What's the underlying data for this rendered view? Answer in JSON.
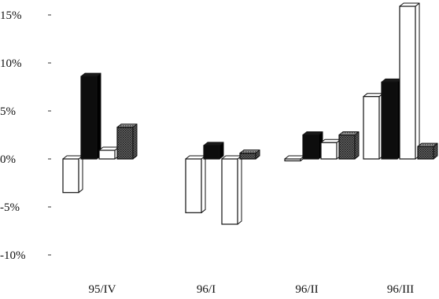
{
  "chart_data": {
    "type": "bar",
    "bar_style": "3d",
    "categories": [
      "95/IV",
      "96/I",
      "96/II",
      "96/III"
    ],
    "series": [
      {
        "pattern": "white",
        "values": [
          -3.5,
          -5.6,
          -0.2,
          6.5
        ]
      },
      {
        "pattern": "black",
        "values": [
          8.6,
          1.4,
          2.5,
          8.0
        ]
      },
      {
        "pattern": "white",
        "values": [
          0.9,
          -6.8,
          1.7,
          15.9
        ]
      },
      {
        "pattern": "crosshatch",
        "values": [
          3.3,
          0.6,
          2.5,
          1.3
        ]
      }
    ],
    "yticks": [
      "15%",
      "10%",
      "5%",
      "0%",
      "-5%",
      "-10%"
    ],
    "ytick_values": [
      15,
      10,
      5,
      0,
      -5,
      -10
    ],
    "ylim": [
      -10,
      15
    ],
    "grid": false,
    "legend": "none",
    "title": "",
    "xlabel": "",
    "ylabel": ""
  }
}
